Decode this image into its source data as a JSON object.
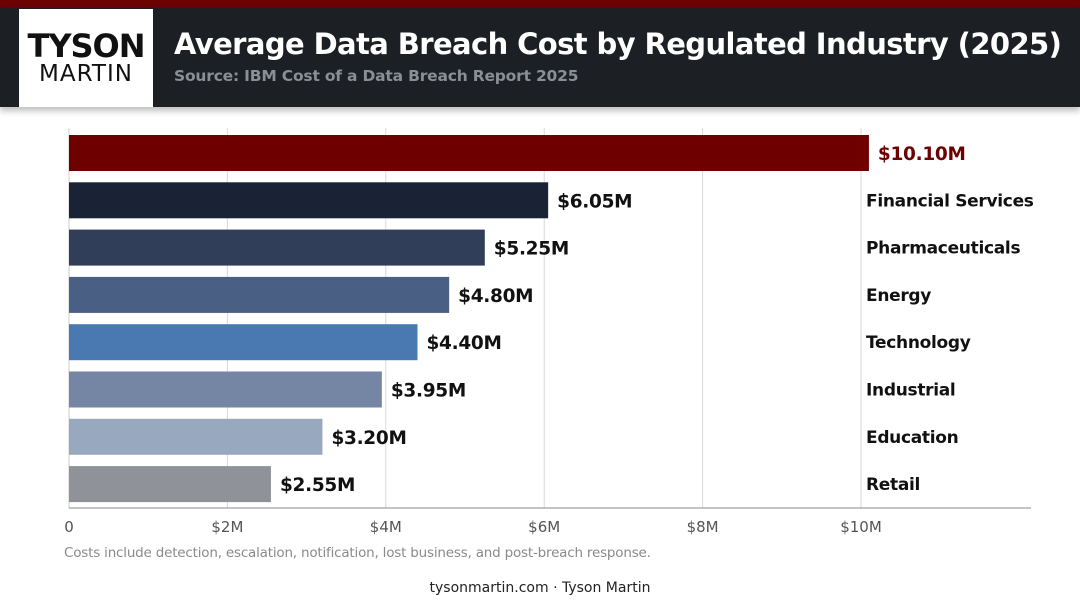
{
  "brand": {
    "logo_top": "TYSON",
    "logo_bottom": "MARTIN",
    "accent": "#6e0000"
  },
  "header": {
    "title": "Average Data Breach Cost by Regulated Industry (2025)",
    "subtitle": "Source: IBM Cost of a Data Breach Report 2025"
  },
  "chart_data": {
    "type": "bar",
    "orientation": "horizontal",
    "title": "Average Data Breach Cost by Regulated Industry (2025)",
    "subtitle": "Source: IBM Cost of a Data Breach Report 2025",
    "categories": [
      "",
      "Financial Services",
      "Pharmaceuticals",
      "Energy",
      "Technology",
      "Industrial",
      "Education",
      "Retail"
    ],
    "values": [
      10.1,
      6.05,
      5.25,
      4.8,
      4.4,
      3.95,
      3.2,
      2.55
    ],
    "value_labels": [
      "$10.10M",
      "$6.05M",
      "$5.25M",
      "$4.80M",
      "$4.40M",
      "$3.95M",
      "$3.20M",
      "$2.55M"
    ],
    "colors": [
      "#6e0000",
      "#1a2236",
      "#313e59",
      "#4a5f84",
      "#4a79b2",
      "#7486a4",
      "#98a9bf",
      "#8f9299"
    ],
    "xlim": [
      0,
      12.2
    ],
    "x_ticks": [
      0,
      2,
      4,
      6,
      8,
      10
    ],
    "x_tick_labels": [
      "0",
      "$2M",
      "$4M",
      "$6M",
      "$8M",
      "$10M"
    ],
    "grid": true,
    "unit": "USD millions"
  },
  "footer": {
    "note": "Costs include detection, escalation, notification, lost business, and post-breach response.",
    "credit": "tysonmartin.com · Tyson Martin"
  }
}
